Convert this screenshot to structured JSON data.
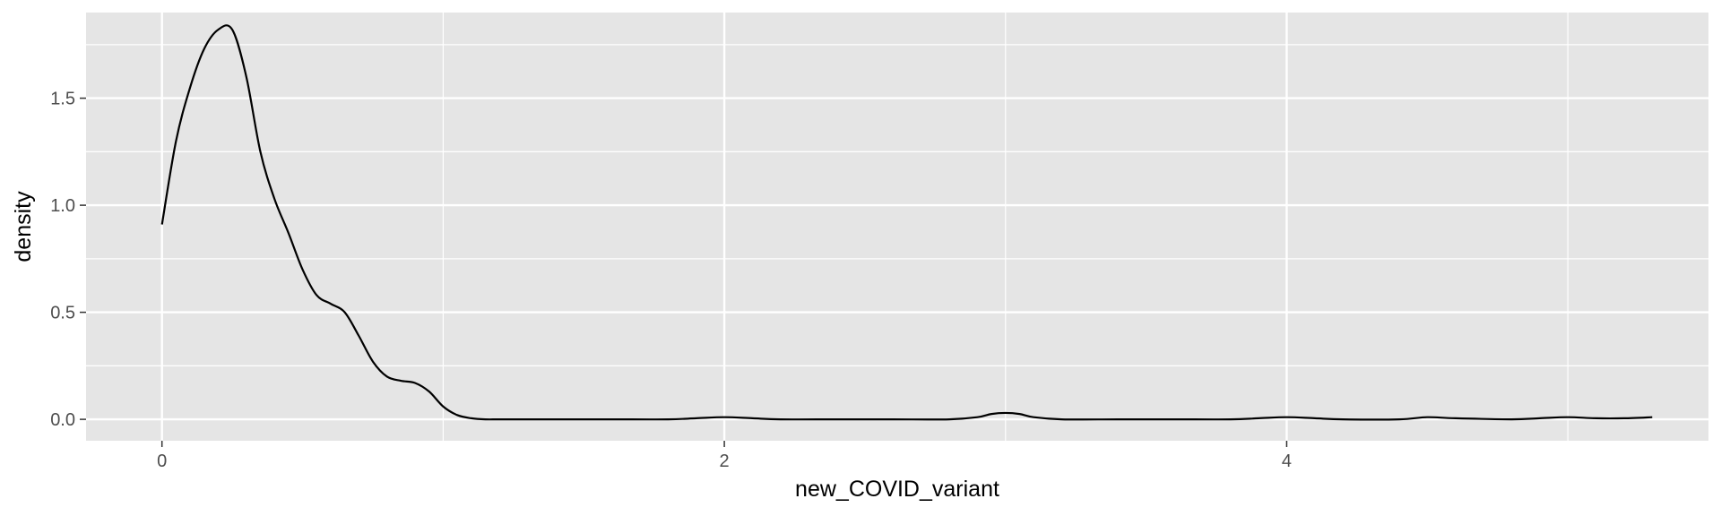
{
  "chart_data": {
    "type": "area",
    "title": "",
    "xlabel": "new_COVID_variant",
    "ylabel": "density",
    "xlim": [
      -0.27,
      5.5
    ],
    "ylim": [
      -0.1,
      1.9
    ],
    "x_ticks": [
      0,
      2,
      4
    ],
    "x_tick_labels": [
      "0",
      "2",
      "4"
    ],
    "x_minor_ticks": [
      1,
      3,
      5
    ],
    "y_ticks": [
      0.0,
      0.5,
      1.0,
      1.5
    ],
    "y_tick_labels": [
      "0.0",
      "0.5",
      "1.0",
      "1.5"
    ],
    "y_minor_ticks": [
      0.25,
      0.75,
      1.25,
      1.75
    ],
    "grid": true,
    "legend": "none",
    "colors": {
      "panel": "#e5e5e5",
      "grid": "#ffffff",
      "line": "#000000",
      "tick_text": "#4d4d4d",
      "axis_title": "#000000"
    },
    "series": [
      {
        "x": [
          0,
          0.05,
          0.1,
          0.15,
          0.2,
          0.25,
          0.3,
          0.35,
          0.4,
          0.45,
          0.5,
          0.55,
          0.6,
          0.65,
          0.7,
          0.75,
          0.8,
          0.85,
          0.9,
          0.95,
          1.0,
          1.05,
          1.1,
          1.15,
          1.2,
          1.3,
          1.4,
          1.6,
          1.8,
          1.9,
          2.0,
          2.1,
          2.2,
          2.4,
          2.6,
          2.8,
          2.9,
          2.95,
          3.0,
          3.05,
          3.1,
          3.2,
          3.4,
          3.6,
          3.8,
          3.9,
          4.0,
          4.1,
          4.2,
          4.4,
          4.5,
          4.6,
          4.8,
          4.9,
          5.0,
          5.1,
          5.2,
          5.3
        ],
        "y": [
          0.91,
          1.3,
          1.55,
          1.73,
          1.82,
          1.82,
          1.6,
          1.25,
          1.03,
          0.87,
          0.7,
          0.58,
          0.54,
          0.5,
          0.39,
          0.27,
          0.2,
          0.18,
          0.17,
          0.13,
          0.06,
          0.02,
          0.005,
          0.0,
          0.0,
          0.0,
          0.0,
          0.0,
          0.0,
          0.005,
          0.01,
          0.005,
          0.0,
          0.0,
          0.0,
          0.0,
          0.01,
          0.025,
          0.03,
          0.025,
          0.01,
          0.0,
          0.0,
          0.0,
          0.0,
          0.005,
          0.01,
          0.005,
          0.0,
          0.0,
          0.01,
          0.005,
          0.0,
          0.005,
          0.01,
          0.005,
          0.005,
          0.01
        ]
      }
    ]
  }
}
